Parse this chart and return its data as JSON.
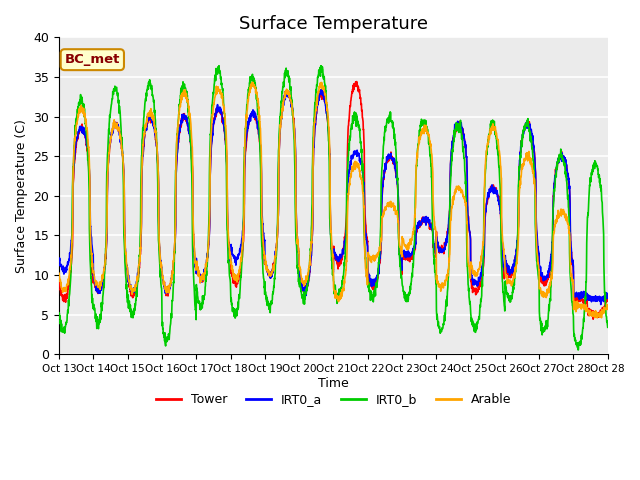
{
  "title": "Surface Temperature",
  "xlabel": "Time",
  "ylabel": "Surface Temperature (C)",
  "xlim": [
    0,
    1
  ],
  "ylim": [
    0,
    40
  ],
  "yticks": [
    0,
    5,
    10,
    15,
    20,
    25,
    30,
    35,
    40
  ],
  "xtick_labels": [
    "Oct 13",
    "Oct 14",
    "Oct 15",
    "Oct 16",
    "Oct 17",
    "Oct 18",
    "Oct 19",
    "Oct 20",
    "Oct 21",
    "Oct 22",
    "Oct 23",
    "Oct 24",
    "Oct 25",
    "Oct 26",
    "Oct 27",
    "Oct 28",
    "Oct 28"
  ],
  "series": [
    "Tower",
    "IRT0_a",
    "IRT0_b",
    "Arable"
  ],
  "colors": [
    "#ff0000",
    "#0000ff",
    "#00cc00",
    "#ffa500"
  ],
  "annotation_text": "BC_met",
  "annotation_bg": "#ffffcc",
  "annotation_border": "#cc8800",
  "annotation_text_color": "#880000",
  "bg_color": "#ebebeb",
  "grid_color": "#ffffff",
  "title_fontsize": 13,
  "legend_fontsize": 9,
  "axis_fontsize": 9,
  "n_days": 16,
  "n_per_day": 144,
  "tower_maxima": [
    28.5,
    29,
    30,
    30,
    31,
    30.5,
    33,
    33,
    34,
    25,
    17,
    29,
    21,
    29,
    25,
    5
  ],
  "tower_minima": [
    7,
    8,
    7.5,
    8,
    9.5,
    9,
    10,
    8,
    11.5,
    8.5,
    12,
    13,
    8,
    10,
    9,
    7
  ],
  "irta_maxima": [
    28.5,
    29,
    30,
    30,
    31,
    30.5,
    33,
    33,
    25.5,
    25,
    17,
    29,
    21,
    29,
    25,
    7
  ],
  "irta_minima": [
    10.5,
    8,
    8,
    8,
    9.5,
    12,
    10,
    8,
    12,
    9,
    12.5,
    13,
    9,
    10.5,
    9.5,
    7.5
  ],
  "irtb_maxima": [
    32,
    33.5,
    34,
    34,
    36,
    35,
    35.5,
    36,
    30,
    30,
    29.5,
    29,
    29,
    29,
    25,
    24
  ],
  "irtb_minima": [
    3,
    4,
    5,
    1.5,
    6,
    5,
    6,
    7,
    7,
    7,
    7,
    3,
    3,
    7,
    3,
    1
  ],
  "arable_maxima": [
    31,
    29,
    30.5,
    33,
    33.5,
    34,
    33,
    34,
    24,
    19,
    28.5,
    21,
    28.5,
    25,
    18,
    5
  ],
  "arable_minima": [
    8,
    8.5,
    8,
    8,
    9.5,
    9.5,
    10,
    9,
    7,
    12,
    13.5,
    8.5,
    10,
    9,
    7.5,
    6
  ]
}
